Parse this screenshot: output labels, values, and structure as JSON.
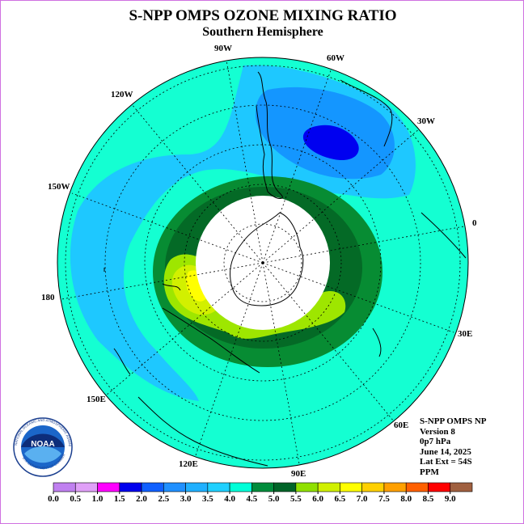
{
  "title": "S-NPP OMPS OZONE MIXING RATIO",
  "subtitle": "Southern Hemisphere",
  "longitude_labels": [
    "90W",
    "60W",
    "30W",
    "0",
    "30E",
    "60E",
    "90E",
    "120E",
    "150E",
    "180",
    "150W",
    "120W"
  ],
  "info": {
    "line1": "S-NPP OMPS NP",
    "line2": "Version 8",
    "line3": "0p7 hPa",
    "line4": "June 14, 2025",
    "line5": "Lat Ext = 54S",
    "line6": "PPM"
  },
  "logo": {
    "text": "NOAA",
    "ring_text": "NATIONAL OCEANIC AND ATMOSPHERIC ADMINISTRATION",
    "ring_text_bottom": "U.S. DEPARTMENT OF COMMERCE"
  },
  "colorbar": {
    "ticks": [
      "0.0",
      "0.5",
      "1.0",
      "1.5",
      "2.0",
      "2.5",
      "3.0",
      "3.5",
      "4.0",
      "4.5",
      "5.0",
      "5.5",
      "6.0",
      "6.5",
      "7.0",
      "7.5",
      "8.0",
      "8.5",
      "9.0"
    ],
    "colors": [
      "#c080f0",
      "#e0a0f8",
      "#ff00ff",
      "#0000ee",
      "#1060ff",
      "#2090ff",
      "#20b0ff",
      "#20d0ff",
      "#00ffd8",
      "#008c3c",
      "#006428",
      "#90e000",
      "#d0f000",
      "#ffff00",
      "#ffd000",
      "#ffa000",
      "#ff6000",
      "#ff0000",
      "#a06040"
    ]
  },
  "map_colors": {
    "background_field": "#14ffd2",
    "band_3_0": "#1ec8ff",
    "band_2_5": "#1496ff",
    "band_2_0": "#0000f0",
    "ring_4_0": "#078c33",
    "ring_4_5": "#046a26",
    "band_5_0": "#9ee600",
    "band_5_5": "#d2f000",
    "band_6_0": "#ffff00",
    "no_data": "#ffffff"
  }
}
